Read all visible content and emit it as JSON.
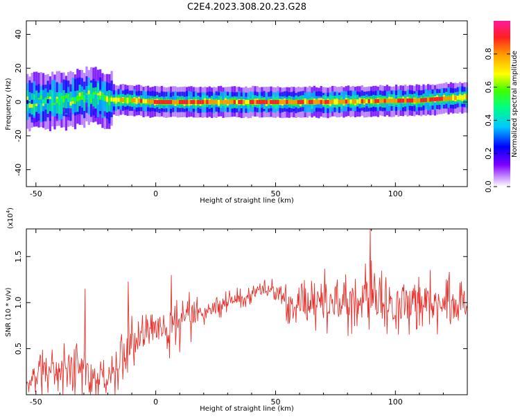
{
  "title": "C2E4.2023.308.20.23.G28",
  "chart_data": [
    {
      "type": "heatmap",
      "xlabel": "Height of straight line (km)",
      "ylabel": "Frequency (Hz)",
      "xlim": [
        -54,
        130
      ],
      "ylim": [
        -50,
        48
      ],
      "xticks": [
        "-50",
        "0",
        "50",
        "100"
      ],
      "yticks": [
        "-40",
        "-20",
        "0",
        "20",
        "40"
      ],
      "ridge": {
        "x": [
          -54,
          -45,
          -38,
          -33,
          -28,
          -25,
          -20,
          -10,
          0,
          10,
          30,
          50,
          70,
          90,
          110,
          120,
          130
        ],
        "freq": [
          0,
          0.5,
          1,
          2,
          3.5,
          3,
          1.5,
          1,
          0,
          0,
          0,
          0,
          0,
          0.5,
          1,
          2,
          3
        ],
        "peak": [
          0.45,
          0.5,
          0.55,
          0.55,
          0.5,
          0.55,
          0.7,
          0.8,
          0.95,
          0.9,
          0.85,
          0.9,
          0.85,
          0.85,
          0.95,
          0.85,
          0.75
        ]
      },
      "colorbar": {
        "label": "Normalized spectral amplitude",
        "ticks": [
          "0.0",
          "0.2",
          "0.4",
          "0.6",
          "0.8"
        ],
        "range": [
          0,
          1
        ]
      },
      "grid": false
    },
    {
      "type": "line",
      "xlabel": "Height of straight line (km)",
      "ylabel": "SNR (10 * v/v)",
      "scale_label_base": "(x10",
      "scale_label_exp": "4",
      "scale_label_end": ")",
      "xlim": [
        -54,
        130
      ],
      "ylim": [
        0,
        18000
      ],
      "xticks": [
        "-50",
        "0",
        "50",
        "100"
      ],
      "yticks": [
        "0.5",
        "1.0",
        "1.5"
      ],
      "series": [
        {
          "color": "#e8302a",
          "x": [
            -54,
            -50,
            -45,
            -40,
            -35,
            -30,
            -25,
            -20,
            -15,
            -12,
            -10,
            -5,
            0,
            5,
            10,
            15,
            20,
            25,
            30,
            35,
            40,
            45,
            50,
            55,
            60,
            65,
            70,
            75,
            80,
            85,
            88,
            90,
            92,
            95,
            100,
            105,
            110,
            115,
            120,
            125,
            130
          ],
          "y": [
            1000,
            2000,
            3000,
            2500,
            3000,
            2500,
            2000,
            1500,
            2500,
            5000,
            5500,
            6500,
            7000,
            7500,
            7500,
            8500,
            9000,
            9500,
            10000,
            10500,
            11000,
            11500,
            11000,
            10500,
            10500,
            10000,
            10500,
            10000,
            10000,
            10500,
            10500,
            11000,
            10000,
            10000,
            10000,
            10000,
            10000,
            10000,
            10000,
            9500,
            10000
          ],
          "spread": [
            600,
            1500,
            2500,
            2200,
            3000,
            2600,
            2000,
            1600,
            2500,
            3500,
            2600,
            2200,
            1800,
            2800,
            2400,
            2200,
            1400,
            1200,
            1000,
            1000,
            900,
            900,
            1300,
            2200,
            2500,
            2800,
            2800,
            3000,
            3000,
            3000,
            3000,
            3000,
            3000,
            3000,
            3000,
            3000,
            3000,
            2800,
            2800,
            2800,
            2600
          ]
        }
      ],
      "spikes": [
        {
          "x": -29.5,
          "y": 11500
        },
        {
          "x": -11.5,
          "y": 12300
        },
        {
          "x": 6.5,
          "y": 13000
        },
        {
          "x": 89.5,
          "y": 18000
        }
      ],
      "grid": false
    }
  ]
}
